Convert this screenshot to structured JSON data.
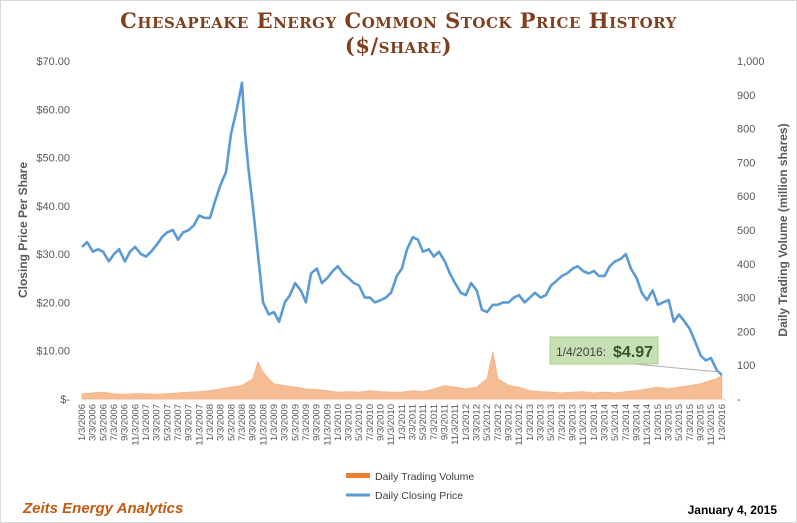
{
  "chart_data": {
    "type": "line",
    "title": "Chesapeake Energy Common Stock Price History",
    "subtitle": "($/share)",
    "ylabel": "Closing Price Per Share",
    "y2label": "Daily Trading Volume (million shares)",
    "ylim": [
      0,
      70
    ],
    "y2lim": [
      0,
      1000
    ],
    "yticks": [
      "$-",
      "$10.00",
      "$20.00",
      "$30.00",
      "$40.00",
      "$50.00",
      "$60.00",
      "$70.00"
    ],
    "y2ticks": [
      "-",
      "100",
      "200",
      "300",
      "400",
      "500",
      "600",
      "700",
      "800",
      "900",
      "1,000"
    ],
    "xticks": [
      "1/3/2006",
      "3/3/2006",
      "5/3/2006",
      "7/3/2006",
      "9/3/2006",
      "11/3/2006",
      "1/3/2007",
      "3/3/2007",
      "5/3/2007",
      "7/3/2007",
      "9/3/2007",
      "11/3/2007",
      "1/3/2008",
      "3/3/2008",
      "5/3/2008",
      "7/3/2008",
      "9/3/2008",
      "11/3/2008",
      "1/3/2009",
      "3/3/2009",
      "5/3/2009",
      "7/3/2009",
      "9/3/2009",
      "11/3/2009",
      "1/3/2010",
      "3/3/2010",
      "5/3/2010",
      "7/3/2010",
      "9/3/2010",
      "11/3/2010",
      "1/3/2011",
      "3/3/2011",
      "5/3/2011",
      "7/3/2011",
      "9/3/2011",
      "11/3/2011",
      "1/3/2012",
      "3/3/2012",
      "5/3/2012",
      "7/3/2012",
      "9/3/2012",
      "11/3/2012",
      "1/3/2013",
      "3/3/2013",
      "5/3/2013",
      "7/3/2013",
      "9/3/2013",
      "11/3/2013",
      "1/3/2014",
      "3/3/2014",
      "5/3/2014",
      "7/3/2014",
      "9/3/2014",
      "11/3/2014",
      "1/3/2015",
      "3/3/2015",
      "5/3/2015",
      "7/3/2015",
      "9/3/2015",
      "11/3/2015",
      "1/3/2016"
    ],
    "series": [
      {
        "name": "Daily Closing Price",
        "axis": "left",
        "color": "#5b9bd5",
        "x": [
          2006.0,
          2006.08,
          2006.17,
          2006.25,
          2006.33,
          2006.42,
          2006.5,
          2006.58,
          2006.67,
          2006.75,
          2006.83,
          2006.92,
          2007.0,
          2007.08,
          2007.17,
          2007.25,
          2007.33,
          2007.42,
          2007.5,
          2007.58,
          2007.67,
          2007.75,
          2007.83,
          2007.92,
          2008.0,
          2008.08,
          2008.17,
          2008.25,
          2008.33,
          2008.42,
          2008.5,
          2008.55,
          2008.6,
          2008.67,
          2008.75,
          2008.83,
          2008.92,
          2009.0,
          2009.08,
          2009.17,
          2009.25,
          2009.33,
          2009.42,
          2009.5,
          2009.58,
          2009.67,
          2009.75,
          2009.83,
          2009.92,
          2010.0,
          2010.08,
          2010.17,
          2010.25,
          2010.33,
          2010.42,
          2010.5,
          2010.58,
          2010.67,
          2010.75,
          2010.83,
          2010.92,
          2011.0,
          2011.08,
          2011.17,
          2011.25,
          2011.33,
          2011.42,
          2011.5,
          2011.58,
          2011.67,
          2011.75,
          2011.83,
          2011.92,
          2012.0,
          2012.08,
          2012.17,
          2012.25,
          2012.33,
          2012.42,
          2012.5,
          2012.58,
          2012.67,
          2012.75,
          2012.83,
          2012.92,
          2013.0,
          2013.08,
          2013.17,
          2013.25,
          2013.33,
          2013.42,
          2013.5,
          2013.58,
          2013.67,
          2013.75,
          2013.83,
          2013.92,
          2014.0,
          2014.08,
          2014.17,
          2014.25,
          2014.33,
          2014.42,
          2014.5,
          2014.58,
          2014.67,
          2014.75,
          2014.83,
          2014.92,
          2015.0,
          2015.08,
          2015.17,
          2015.25,
          2015.33,
          2015.42,
          2015.5,
          2015.58,
          2015.67,
          2015.75,
          2015.83,
          2015.92,
          2016.0
        ],
        "values": [
          31.5,
          32.5,
          30.5,
          31.0,
          30.5,
          28.5,
          30.0,
          31.0,
          28.5,
          30.5,
          31.5,
          30.0,
          29.5,
          30.5,
          32.0,
          33.5,
          34.5,
          35.0,
          33.0,
          34.5,
          35.0,
          36.0,
          38.0,
          37.5,
          37.5,
          41.0,
          44.5,
          47.0,
          55.0,
          60.0,
          65.5,
          55.0,
          48.0,
          40.0,
          30.0,
          20.0,
          17.5,
          18.0,
          16.0,
          20.0,
          21.5,
          24.0,
          22.5,
          20.0,
          26.0,
          27.0,
          24.0,
          25.0,
          26.5,
          27.5,
          26.0,
          25.0,
          24.0,
          23.5,
          21.0,
          21.0,
          20.0,
          20.5,
          21.0,
          22.0,
          25.5,
          27.0,
          31.0,
          33.5,
          33.0,
          30.5,
          31.0,
          29.5,
          30.5,
          28.5,
          26.0,
          24.0,
          22.0,
          21.5,
          24.0,
          22.5,
          18.5,
          18.0,
          19.5,
          19.5,
          20.0,
          20.0,
          21.0,
          21.5,
          20.0,
          21.0,
          22.0,
          21.0,
          21.5,
          23.5,
          24.5,
          25.5,
          26.0,
          27.0,
          27.5,
          26.5,
          26.0,
          26.5,
          25.5,
          25.5,
          27.5,
          28.5,
          29.0,
          30.0,
          27.0,
          25.0,
          22.0,
          20.5,
          22.5,
          19.5,
          20.0,
          20.5,
          16.0,
          17.5,
          16.0,
          14.5,
          12.0,
          9.0,
          8.0,
          8.5,
          6.0,
          4.97
        ]
      },
      {
        "name": "Daily Trading Volume",
        "axis": "right",
        "color": "#ed7d31",
        "x": [
          2006.0,
          2006.17,
          2006.33,
          2006.5,
          2006.67,
          2006.83,
          2007.0,
          2007.17,
          2007.33,
          2007.5,
          2007.67,
          2007.83,
          2008.0,
          2008.17,
          2008.33,
          2008.5,
          2008.67,
          2008.75,
          2008.83,
          2008.92,
          2009.0,
          2009.17,
          2009.33,
          2009.5,
          2009.67,
          2009.83,
          2010.0,
          2010.17,
          2010.33,
          2010.5,
          2010.67,
          2010.83,
          2011.0,
          2011.17,
          2011.33,
          2011.5,
          2011.67,
          2011.83,
          2012.0,
          2012.17,
          2012.33,
          2012.42,
          2012.5,
          2012.67,
          2012.83,
          2013.0,
          2013.17,
          2013.33,
          2013.5,
          2013.67,
          2013.83,
          2014.0,
          2014.17,
          2014.33,
          2014.5,
          2014.67,
          2014.83,
          2015.0,
          2015.17,
          2015.33,
          2015.5,
          2015.67,
          2015.83,
          2015.92,
          2016.0
        ],
        "values": [
          15,
          18,
          20,
          15,
          14,
          16,
          15,
          14,
          16,
          18,
          20,
          22,
          25,
          30,
          35,
          40,
          60,
          110,
          80,
          60,
          45,
          40,
          35,
          30,
          28,
          25,
          20,
          22,
          20,
          25,
          22,
          20,
          20,
          25,
          22,
          30,
          40,
          35,
          30,
          35,
          60,
          140,
          60,
          40,
          35,
          25,
          22,
          20,
          18,
          20,
          22,
          18,
          20,
          18,
          22,
          25,
          30,
          35,
          30,
          35,
          40,
          45,
          55,
          60,
          70
        ]
      }
    ],
    "annotation": {
      "label": "1/4/2016:",
      "value": "$4.97"
    },
    "legend": {
      "position": "bottom"
    },
    "grid": false
  },
  "footer": {
    "left": "Zeits Energy Analytics",
    "right": "January 4, 2015"
  }
}
